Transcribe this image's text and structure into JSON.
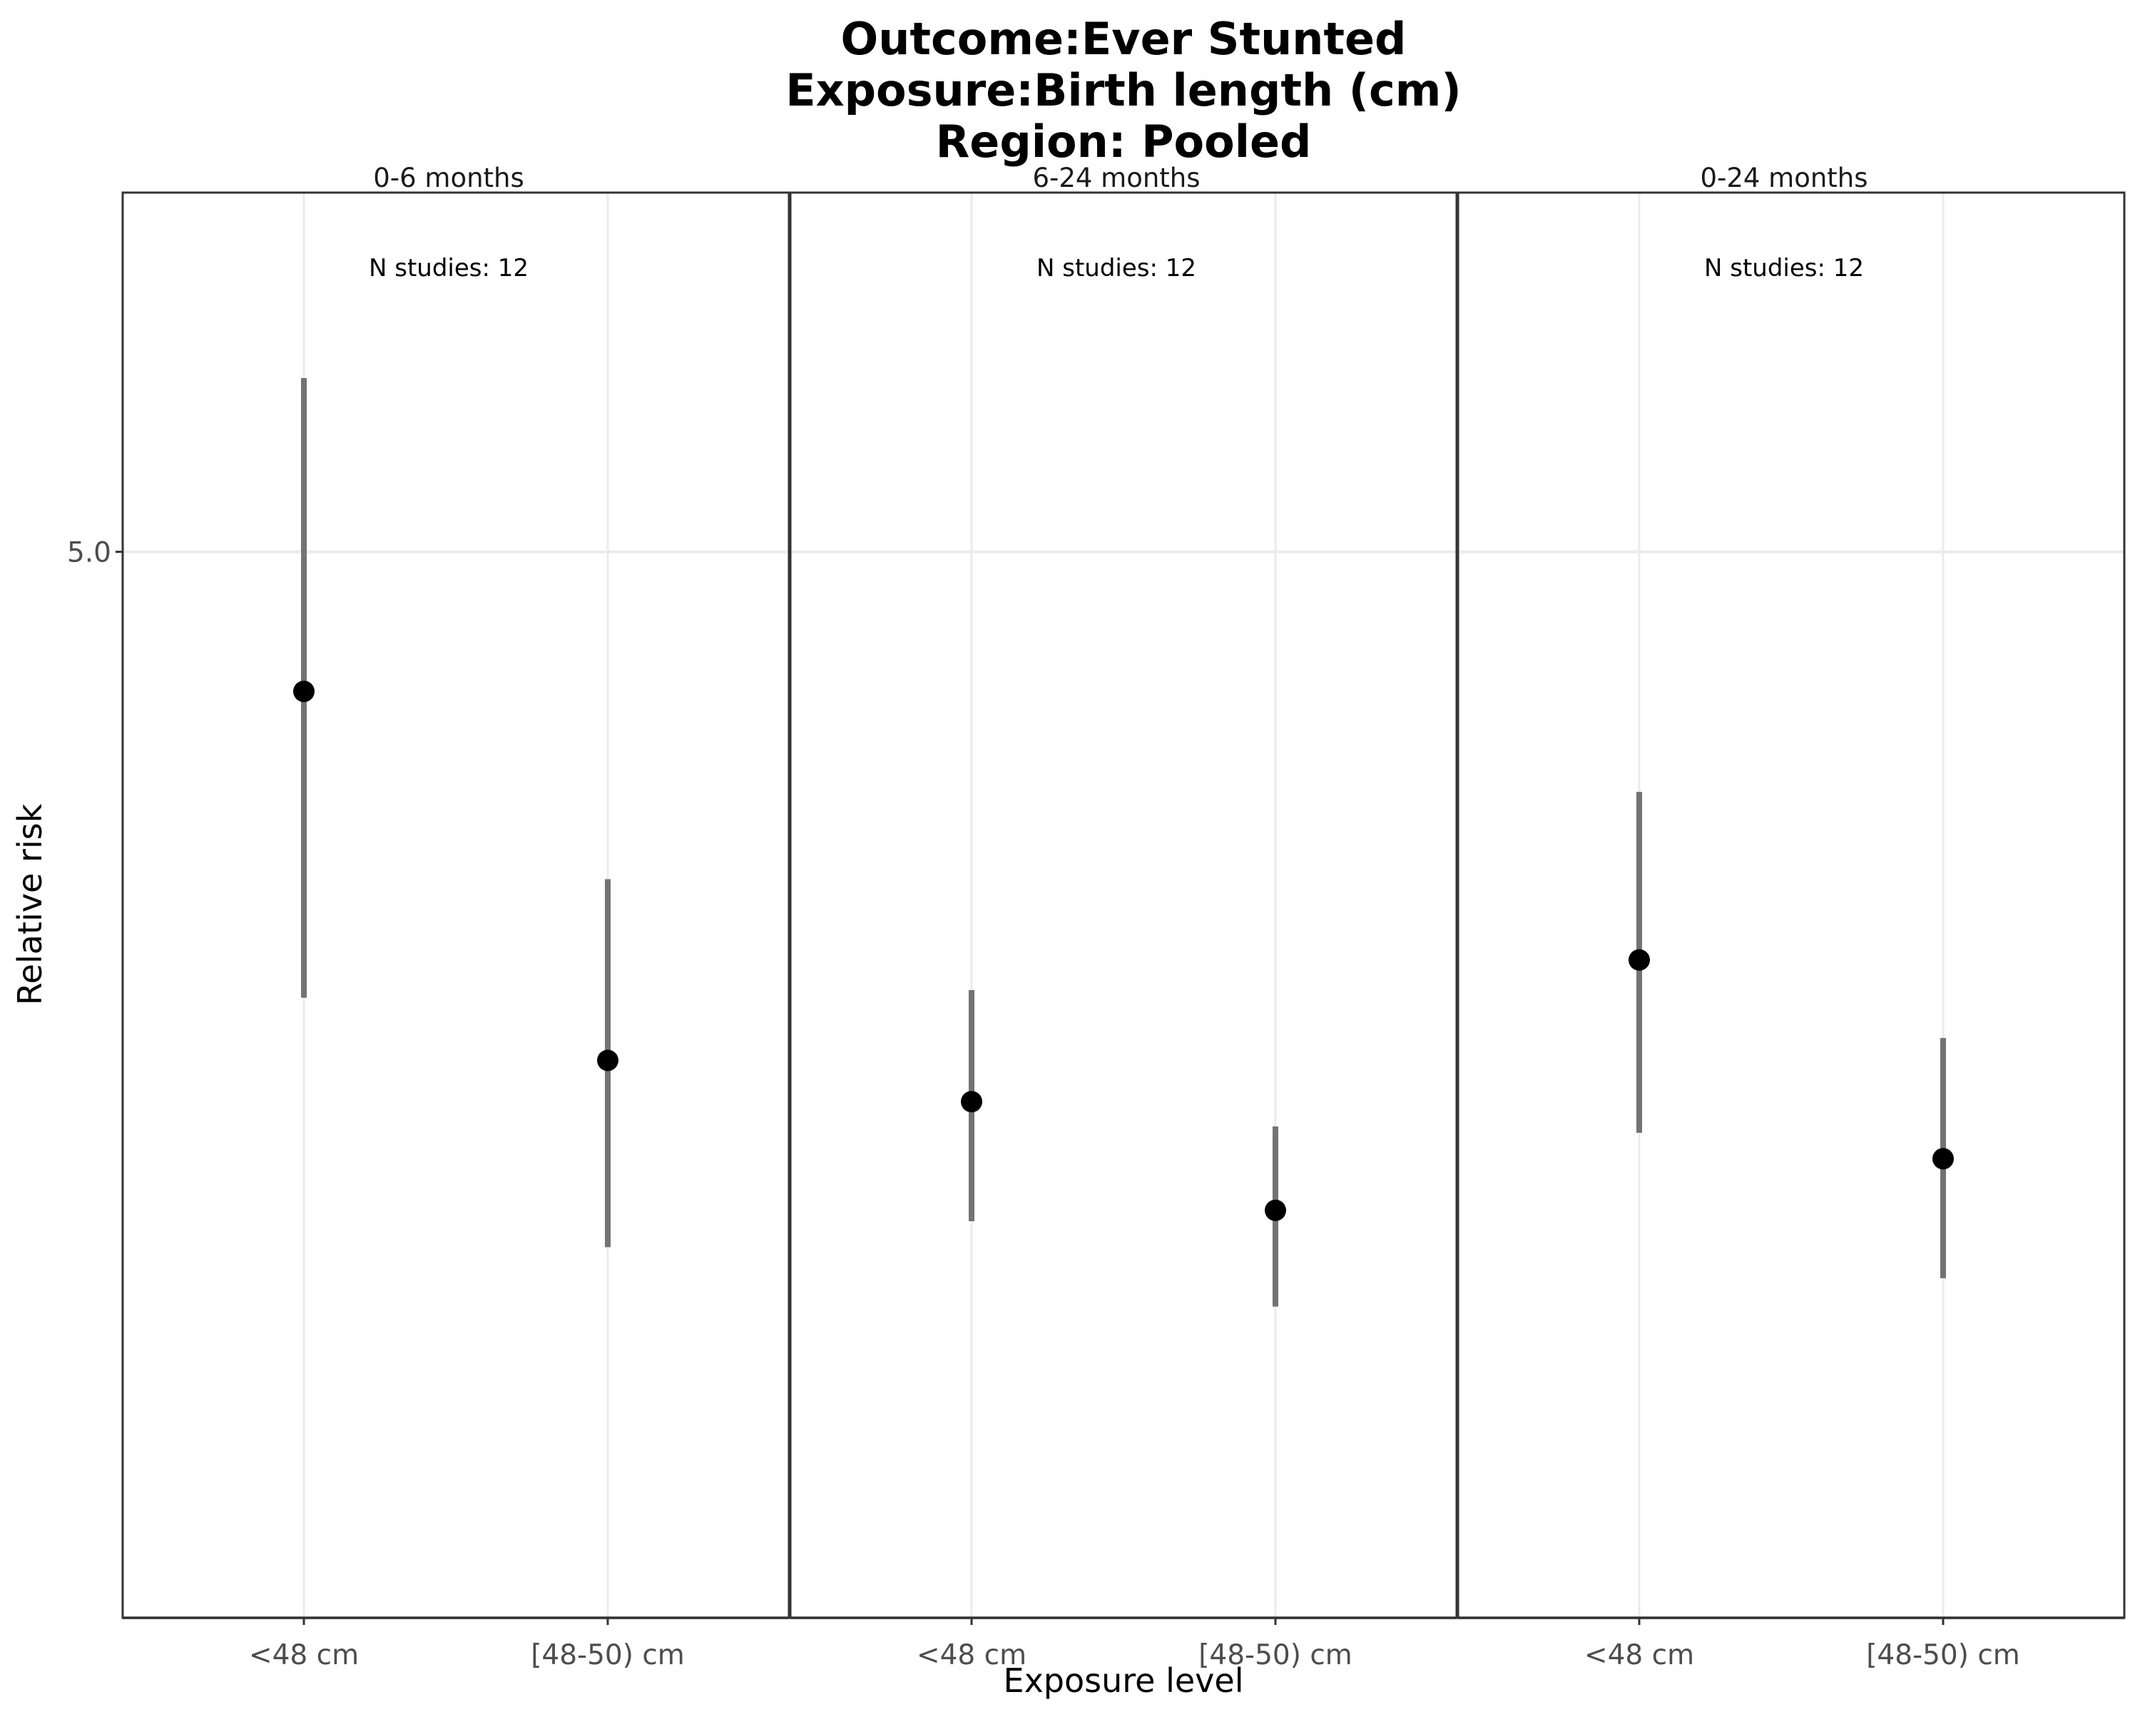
{
  "chart_data": {
    "type": "scatter",
    "title_lines": [
      "Outcome:Ever Stunted",
      "Exposure:Birth length (cm)",
      "Region: Pooled"
    ],
    "xlabel": "Exposure level",
    "ylabel": "Relative risk",
    "y_scale": "log",
    "ylim": [
      1.0,
      8.6
    ],
    "y_ticks": [
      {
        "value": 5.0,
        "label": "5.0"
      }
    ],
    "reference_line": 1.0,
    "categories": [
      "<48 cm",
      "[48-50) cm"
    ],
    "panels": [
      {
        "label": "0-6 months",
        "note": "N studies: 12",
        "points": [
          {
            "category": "<48 cm",
            "estimate": 4.05,
            "lower": 2.55,
            "upper": 6.5
          },
          {
            "category": "[48-50) cm",
            "estimate": 2.32,
            "lower": 1.75,
            "upper": 3.05
          }
        ]
      },
      {
        "label": "6-24 months",
        "note": "N studies: 12",
        "points": [
          {
            "category": "<48 cm",
            "estimate": 2.18,
            "lower": 1.82,
            "upper": 2.58
          },
          {
            "category": "[48-50) cm",
            "estimate": 1.85,
            "lower": 1.6,
            "upper": 2.1
          }
        ]
      },
      {
        "label": "0-24 months",
        "note": "N studies: 12",
        "points": [
          {
            "category": "<48 cm",
            "estimate": 2.7,
            "lower": 2.08,
            "upper": 3.48
          },
          {
            "category": "[48-50) cm",
            "estimate": 2.0,
            "lower": 1.67,
            "upper": 2.4
          }
        ]
      }
    ],
    "colors": {
      "point": "#000000",
      "error_bar": "#737373",
      "grid": "#ebebeb",
      "panel_border": "#333333",
      "reference_line": "#000000"
    }
  }
}
